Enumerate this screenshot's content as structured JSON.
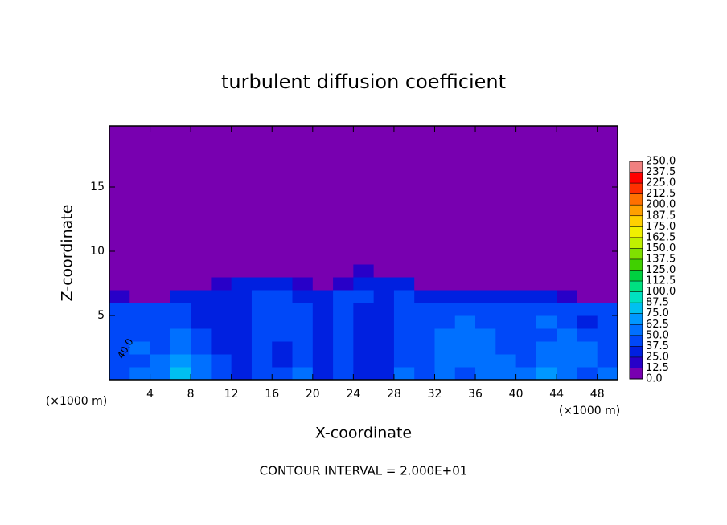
{
  "chart_data": {
    "type": "heatmap",
    "title": "turbulent diffusion coefficient",
    "x_label": "X-coordinate",
    "y_label": "Z-coordinate",
    "x_unit": "(×1000 m)",
    "footer": "CONTOUR INTERVAL = 2.000E+01",
    "xlim": [
      0,
      50
    ],
    "ylim": [
      0,
      19.75
    ],
    "xticks": [
      4,
      8,
      12,
      16,
      20,
      24,
      28,
      32,
      36,
      40,
      44,
      48
    ],
    "yticks": [
      5,
      10,
      15
    ],
    "background": "#7800b0",
    "x": [
      1,
      3,
      5,
      7,
      9,
      11,
      13,
      15,
      17,
      19,
      21,
      23,
      25,
      27,
      29,
      31,
      33,
      35,
      37,
      39,
      41,
      43,
      45,
      47,
      49
    ],
    "y": [
      0.5,
      1.5,
      2.5,
      3.5,
      4.5,
      5.5,
      6.5,
      7.5,
      8.5,
      9.5
    ],
    "z": [
      [
        45,
        50,
        55,
        80,
        60,
        45,
        35,
        40,
        40,
        50,
        30,
        45,
        30,
        35,
        50,
        40,
        55,
        45,
        60,
        50,
        50,
        65,
        55,
        40,
        50
      ],
      [
        40,
        45,
        50,
        65,
        50,
        40,
        30,
        40,
        35,
        45,
        30,
        40,
        30,
        35,
        45,
        40,
        60,
        60,
        55,
        50,
        45,
        55,
        60,
        50,
        45
      ],
      [
        45,
        50,
        45,
        55,
        45,
        35,
        30,
        40,
        35,
        45,
        30,
        40,
        30,
        35,
        40,
        45,
        55,
        60,
        50,
        45,
        40,
        50,
        55,
        50,
        40
      ],
      [
        40,
        45,
        40,
        50,
        40,
        30,
        30,
        40,
        40,
        45,
        35,
        40,
        35,
        35,
        40,
        45,
        50,
        55,
        50,
        40,
        40,
        45,
        50,
        45,
        40
      ],
      [
        45,
        40,
        40,
        45,
        35,
        30,
        30,
        40,
        40,
        45,
        35,
        40,
        35,
        35,
        40,
        40,
        45,
        50,
        45,
        40,
        40,
        50,
        45,
        35,
        40
      ],
      [
        40,
        40,
        40,
        40,
        35,
        30,
        30,
        40,
        45,
        40,
        35,
        40,
        35,
        35,
        40,
        40,
        40,
        45,
        40,
        40,
        40,
        45,
        40,
        40,
        40
      ],
      [
        15,
        10,
        10,
        25,
        35,
        35,
        35,
        40,
        40,
        30,
        30,
        40,
        40,
        35,
        40,
        35,
        30,
        35,
        30,
        25,
        30,
        30,
        20,
        10,
        10
      ],
      [
        0,
        0,
        0,
        0,
        5,
        20,
        25,
        30,
        30,
        15,
        5,
        20,
        25,
        30,
        25,
        10,
        0,
        0,
        0,
        0,
        0,
        0,
        0,
        0,
        0
      ],
      [
        0,
        0,
        0,
        0,
        0,
        0,
        10,
        10,
        5,
        0,
        0,
        5,
        15,
        10,
        0,
        0,
        0,
        0,
        0,
        0,
        0,
        0,
        0,
        0,
        0
      ],
      [
        0,
        0,
        0,
        0,
        0,
        0,
        0,
        0,
        0,
        0,
        0,
        0,
        0,
        0,
        0,
        0,
        0,
        0,
        0,
        0,
        0,
        0,
        0,
        0,
        0
      ]
    ],
    "annotations": [
      {
        "text": "40.0",
        "x": 1.6,
        "y": 2.4
      }
    ],
    "colorbar": {
      "levels": [
        {
          "value": 0,
          "label": "0.0"
        },
        {
          "value": 12.5,
          "label": "12.5"
        },
        {
          "value": 25,
          "label": "25.0"
        },
        {
          "value": 37.5,
          "label": "37.5"
        },
        {
          "value": 50,
          "label": "50.0"
        },
        {
          "value": 62.5,
          "label": "62.5"
        },
        {
          "value": 75,
          "label": "75.0"
        },
        {
          "value": 87.5,
          "label": "87.5"
        },
        {
          "value": 100,
          "label": "100.0"
        },
        {
          "value": 112.5,
          "label": "112.5"
        },
        {
          "value": 125,
          "label": "125.0"
        },
        {
          "value": 137.5,
          "label": "137.5"
        },
        {
          "value": 150,
          "label": "150.0"
        },
        {
          "value": 162.5,
          "label": "162.5"
        },
        {
          "value": 175,
          "label": "175.0"
        },
        {
          "value": 187.5,
          "label": "187.5"
        },
        {
          "value": 200,
          "label": "200.0"
        },
        {
          "value": 212.5,
          "label": "212.5"
        },
        {
          "value": 225,
          "label": "225.0"
        },
        {
          "value": 237.5,
          "label": "237.5"
        },
        {
          "value": 250,
          "label": "250.0"
        }
      ],
      "colors": [
        "#7800b0",
        "#2800c8",
        "#0020e0",
        "#0048f8",
        "#0070ff",
        "#0098ff",
        "#00c0f0",
        "#00e0c0",
        "#00e080",
        "#00d040",
        "#40d000",
        "#80e000",
        "#c0f000",
        "#f0f000",
        "#ffd000",
        "#ffa000",
        "#ff7000",
        "#ff3000",
        "#ff0000",
        "#f08080"
      ]
    }
  }
}
